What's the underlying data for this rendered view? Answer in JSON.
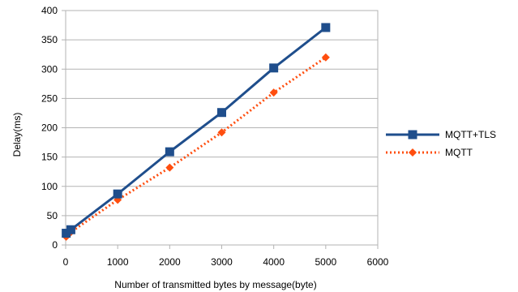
{
  "chart_data": {
    "type": "line",
    "xlabel": "Number of transmitted bytes by message(byte)",
    "ylabel": "Delay(ms)",
    "xlim": [
      0,
      6000
    ],
    "ylim": [
      0,
      400
    ],
    "x_ticks": [
      0,
      1000,
      2000,
      3000,
      4000,
      5000,
      6000
    ],
    "y_ticks": [
      0,
      50,
      100,
      150,
      200,
      250,
      300,
      350,
      400
    ],
    "grid": "horizontal",
    "legend_position": "right",
    "series": [
      {
        "name": "MQTT+TLS",
        "color": "#1f4e8c",
        "marker": "square",
        "line_style": "solid",
        "points": [
          {
            "x": 10,
            "y": 20
          },
          {
            "x": 100,
            "y": 26
          },
          {
            "x": 1000,
            "y": 87
          },
          {
            "x": 2000,
            "y": 159
          },
          {
            "x": 3000,
            "y": 226
          },
          {
            "x": 4000,
            "y": 302
          },
          {
            "x": 5000,
            "y": 371
          }
        ]
      },
      {
        "name": "MQTT",
        "color": "#ff4e0f",
        "marker": "diamond",
        "line_style": "dotted",
        "points": [
          {
            "x": 10,
            "y": 14
          },
          {
            "x": 100,
            "y": 22
          },
          {
            "x": 1000,
            "y": 77
          },
          {
            "x": 2000,
            "y": 132
          },
          {
            "x": 3000,
            "y": 192
          },
          {
            "x": 4000,
            "y": 260
          },
          {
            "x": 5000,
            "y": 320
          }
        ]
      }
    ]
  }
}
